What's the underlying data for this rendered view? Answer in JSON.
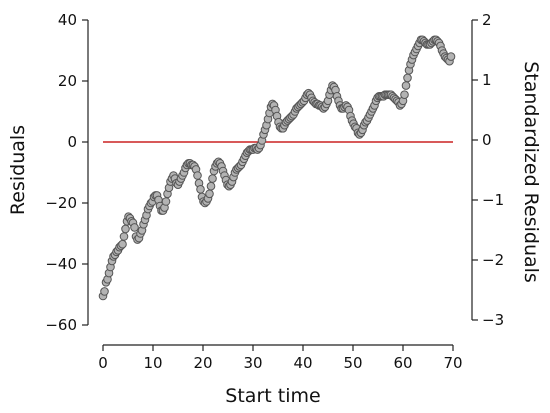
{
  "chart_data": {
    "type": "scatter",
    "xlabel": "Start time",
    "ylabel": "Residuals",
    "y2label": "Standardized Residuals",
    "xlim": [
      0,
      70
    ],
    "ylim": [
      -60,
      40
    ],
    "y2lim": [
      -3,
      2
    ],
    "x_ticks": [
      "0",
      "10",
      "20",
      "30",
      "40",
      "50",
      "60",
      "70"
    ],
    "y_ticks": [
      "40",
      "20",
      "0",
      "−20",
      "−40",
      "−60"
    ],
    "y2_ticks": [
      "2",
      "1",
      "0",
      "−1",
      "−2",
      "−3"
    ],
    "reference_line": {
      "y": 0,
      "color": "#cc2222"
    },
    "grid": false,
    "point_color": "#b3b3b3",
    "point_edge_color": "#555555",
    "points": [
      [
        0.0,
        -50.5
      ],
      [
        0.3,
        -49.0
      ],
      [
        0.6,
        -46.0
      ],
      [
        0.9,
        -45.0
      ],
      [
        1.2,
        -43.0
      ],
      [
        1.5,
        -41.0
      ],
      [
        1.8,
        -39.0
      ],
      [
        2.1,
        -37.5
      ],
      [
        2.4,
        -37.0
      ],
      [
        2.7,
        -36.0
      ],
      [
        3.0,
        -35.5
      ],
      [
        3.3,
        -34.5
      ],
      [
        3.6,
        -34.0
      ],
      [
        3.9,
        -33.5
      ],
      [
        4.2,
        -31.0
      ],
      [
        4.5,
        -28.5
      ],
      [
        4.8,
        -26.0
      ],
      [
        5.1,
        -24.5
      ],
      [
        5.4,
        -25.0
      ],
      [
        5.7,
        -26.0
      ],
      [
        6.0,
        -26.5
      ],
      [
        6.3,
        -28.0
      ],
      [
        6.6,
        -31.0
      ],
      [
        6.9,
        -32.0
      ],
      [
        7.2,
        -31.5
      ],
      [
        7.5,
        -30.0
      ],
      [
        7.8,
        -29.0
      ],
      [
        8.1,
        -27.0
      ],
      [
        8.4,
        -25.5
      ],
      [
        8.7,
        -24.0
      ],
      [
        9.0,
        -22.0
      ],
      [
        9.3,
        -21.0
      ],
      [
        9.6,
        -20.0
      ],
      [
        9.9,
        -19.5
      ],
      [
        10.2,
        -18.0
      ],
      [
        10.5,
        -17.5
      ],
      [
        10.8,
        -17.5
      ],
      [
        11.1,
        -19.0
      ],
      [
        11.4,
        -21.0
      ],
      [
        11.7,
        -22.5
      ],
      [
        12.0,
        -22.5
      ],
      [
        12.3,
        -21.5
      ],
      [
        12.6,
        -19.5
      ],
      [
        12.9,
        -17.0
      ],
      [
        13.2,
        -15.0
      ],
      [
        13.5,
        -13.0
      ],
      [
        13.8,
        -12.0
      ],
      [
        14.1,
        -11.0
      ],
      [
        14.4,
        -12.0
      ],
      [
        14.7,
        -13.5
      ],
      [
        15.0,
        -14.0
      ],
      [
        15.3,
        -13.0
      ],
      [
        15.6,
        -12.0
      ],
      [
        15.9,
        -11.0
      ],
      [
        16.2,
        -10.0
      ],
      [
        16.5,
        -8.5
      ],
      [
        16.8,
        -7.5
      ],
      [
        17.1,
        -7.0
      ],
      [
        17.4,
        -7.0
      ],
      [
        17.7,
        -7.5
      ],
      [
        18.0,
        -7.5
      ],
      [
        18.3,
        -8.0
      ],
      [
        18.6,
        -9.0
      ],
      [
        18.9,
        -11.0
      ],
      [
        19.2,
        -13.5
      ],
      [
        19.5,
        -15.5
      ],
      [
        19.8,
        -18.0
      ],
      [
        20.1,
        -19.5
      ],
      [
        20.4,
        -20.0
      ],
      [
        20.7,
        -19.5
      ],
      [
        21.0,
        -18.5
      ],
      [
        21.3,
        -17.0
      ],
      [
        21.6,
        -14.5
      ],
      [
        21.9,
        -12.0
      ],
      [
        22.2,
        -9.5
      ],
      [
        22.5,
        -8.0
      ],
      [
        22.8,
        -7.0
      ],
      [
        23.1,
        -6.5
      ],
      [
        23.4,
        -7.0
      ],
      [
        23.7,
        -8.0
      ],
      [
        24.0,
        -9.5
      ],
      [
        24.3,
        -11.0
      ],
      [
        24.6,
        -12.5
      ],
      [
        24.9,
        -14.0
      ],
      [
        25.2,
        -14.5
      ],
      [
        25.5,
        -14.0
      ],
      [
        25.8,
        -13.0
      ],
      [
        26.1,
        -11.5
      ],
      [
        26.4,
        -10.0
      ],
      [
        26.7,
        -9.0
      ],
      [
        27.0,
        -8.5
      ],
      [
        27.3,
        -8.0
      ],
      [
        27.6,
        -7.5
      ],
      [
        27.9,
        -6.5
      ],
      [
        28.2,
        -5.5
      ],
      [
        28.5,
        -4.5
      ],
      [
        28.8,
        -3.5
      ],
      [
        29.1,
        -3.0
      ],
      [
        29.4,
        -2.5
      ],
      [
        29.7,
        -2.5
      ],
      [
        30.0,
        -2.5
      ],
      [
        30.3,
        -2.0
      ],
      [
        30.6,
        -2.0
      ],
      [
        30.9,
        -2.5
      ],
      [
        31.2,
        -2.0
      ],
      [
        31.5,
        -1.0
      ],
      [
        31.8,
        0.5
      ],
      [
        32.1,
        2.5
      ],
      [
        32.4,
        4.0
      ],
      [
        32.7,
        5.5
      ],
      [
        33.0,
        7.5
      ],
      [
        33.3,
        9.5
      ],
      [
        33.6,
        11.5
      ],
      [
        33.9,
        12.5
      ],
      [
        34.2,
        12.0
      ],
      [
        34.5,
        10.5
      ],
      [
        34.8,
        8.5
      ],
      [
        35.1,
        6.5
      ],
      [
        35.4,
        5.0
      ],
      [
        35.7,
        4.5
      ],
      [
        36.0,
        4.5
      ],
      [
        36.3,
        5.5
      ],
      [
        36.6,
        6.5
      ],
      [
        36.9,
        7.0
      ],
      [
        37.2,
        7.5
      ],
      [
        37.5,
        8.0
      ],
      [
        37.8,
        8.5
      ],
      [
        38.1,
        9.0
      ],
      [
        38.4,
        10.0
      ],
      [
        38.7,
        11.0
      ],
      [
        39.0,
        11.5
      ],
      [
        39.3,
        12.0
      ],
      [
        39.6,
        12.5
      ],
      [
        39.9,
        13.0
      ],
      [
        40.2,
        13.5
      ],
      [
        40.5,
        14.5
      ],
      [
        40.8,
        15.5
      ],
      [
        41.1,
        16.0
      ],
      [
        41.4,
        15.5
      ],
      [
        41.7,
        14.5
      ],
      [
        42.0,
        13.5
      ],
      [
        42.3,
        13.0
      ],
      [
        42.6,
        12.5
      ],
      [
        42.9,
        12.5
      ],
      [
        43.2,
        12.0
      ],
      [
        43.5,
        12.0
      ],
      [
        43.8,
        11.5
      ],
      [
        44.1,
        11.0
      ],
      [
        44.4,
        11.5
      ],
      [
        44.7,
        12.5
      ],
      [
        45.0,
        13.5
      ],
      [
        45.3,
        15.5
      ],
      [
        45.6,
        17.0
      ],
      [
        45.9,
        18.5
      ],
      [
        46.2,
        18.0
      ],
      [
        46.5,
        17.0
      ],
      [
        46.8,
        15.0
      ],
      [
        47.1,
        13.5
      ],
      [
        47.4,
        12.0
      ],
      [
        47.7,
        11.0
      ],
      [
        48.0,
        11.0
      ],
      [
        48.3,
        11.5
      ],
      [
        48.6,
        12.0
      ],
      [
        48.9,
        11.5
      ],
      [
        49.2,
        10.5
      ],
      [
        49.5,
        8.5
      ],
      [
        49.8,
        7.0
      ],
      [
        50.1,
        6.0
      ],
      [
        50.4,
        5.0
      ],
      [
        50.7,
        4.5
      ],
      [
        51.0,
        3.0
      ],
      [
        51.3,
        2.5
      ],
      [
        51.6,
        3.0
      ],
      [
        51.9,
        4.0
      ],
      [
        52.2,
        5.5
      ],
      [
        52.5,
        6.5
      ],
      [
        52.8,
        7.0
      ],
      [
        53.1,
        8.0
      ],
      [
        53.4,
        9.0
      ],
      [
        53.7,
        10.0
      ],
      [
        54.0,
        11.0
      ],
      [
        54.3,
        12.0
      ],
      [
        54.6,
        13.5
      ],
      [
        54.9,
        14.5
      ],
      [
        55.2,
        15.0
      ],
      [
        55.5,
        15.0
      ],
      [
        55.8,
        15.0
      ],
      [
        56.1,
        15.0
      ],
      [
        56.4,
        15.5
      ],
      [
        56.7,
        15.5
      ],
      [
        57.0,
        15.5
      ],
      [
        57.3,
        15.5
      ],
      [
        57.6,
        15.5
      ],
      [
        57.9,
        15.0
      ],
      [
        58.2,
        14.5
      ],
      [
        58.5,
        14.0
      ],
      [
        58.8,
        13.5
      ],
      [
        59.1,
        13.0
      ],
      [
        59.4,
        12.0
      ],
      [
        59.7,
        12.5
      ],
      [
        60.0,
        13.5
      ],
      [
        60.3,
        15.5
      ],
      [
        60.6,
        18.5
      ],
      [
        60.9,
        21.0
      ],
      [
        61.2,
        23.5
      ],
      [
        61.5,
        25.5
      ],
      [
        61.8,
        27.0
      ],
      [
        62.1,
        28.5
      ],
      [
        62.4,
        29.5
      ],
      [
        62.7,
        30.5
      ],
      [
        63.0,
        31.5
      ],
      [
        63.3,
        32.5
      ],
      [
        63.6,
        33.5
      ],
      [
        63.9,
        33.5
      ],
      [
        64.2,
        33.0
      ],
      [
        64.5,
        32.5
      ],
      [
        64.8,
        32.0
      ],
      [
        65.1,
        32.0
      ],
      [
        65.4,
        32.0
      ],
      [
        65.7,
        32.5
      ],
      [
        66.0,
        33.0
      ],
      [
        66.3,
        33.5
      ],
      [
        66.6,
        33.5
      ],
      [
        66.9,
        33.0
      ],
      [
        67.2,
        32.5
      ],
      [
        67.5,
        31.5
      ],
      [
        67.8,
        30.0
      ],
      [
        68.1,
        29.0
      ],
      [
        68.4,
        28.0
      ],
      [
        68.7,
        27.5
      ],
      [
        69.0,
        27.0
      ],
      [
        69.3,
        26.5
      ],
      [
        69.6,
        28.0
      ]
    ]
  }
}
